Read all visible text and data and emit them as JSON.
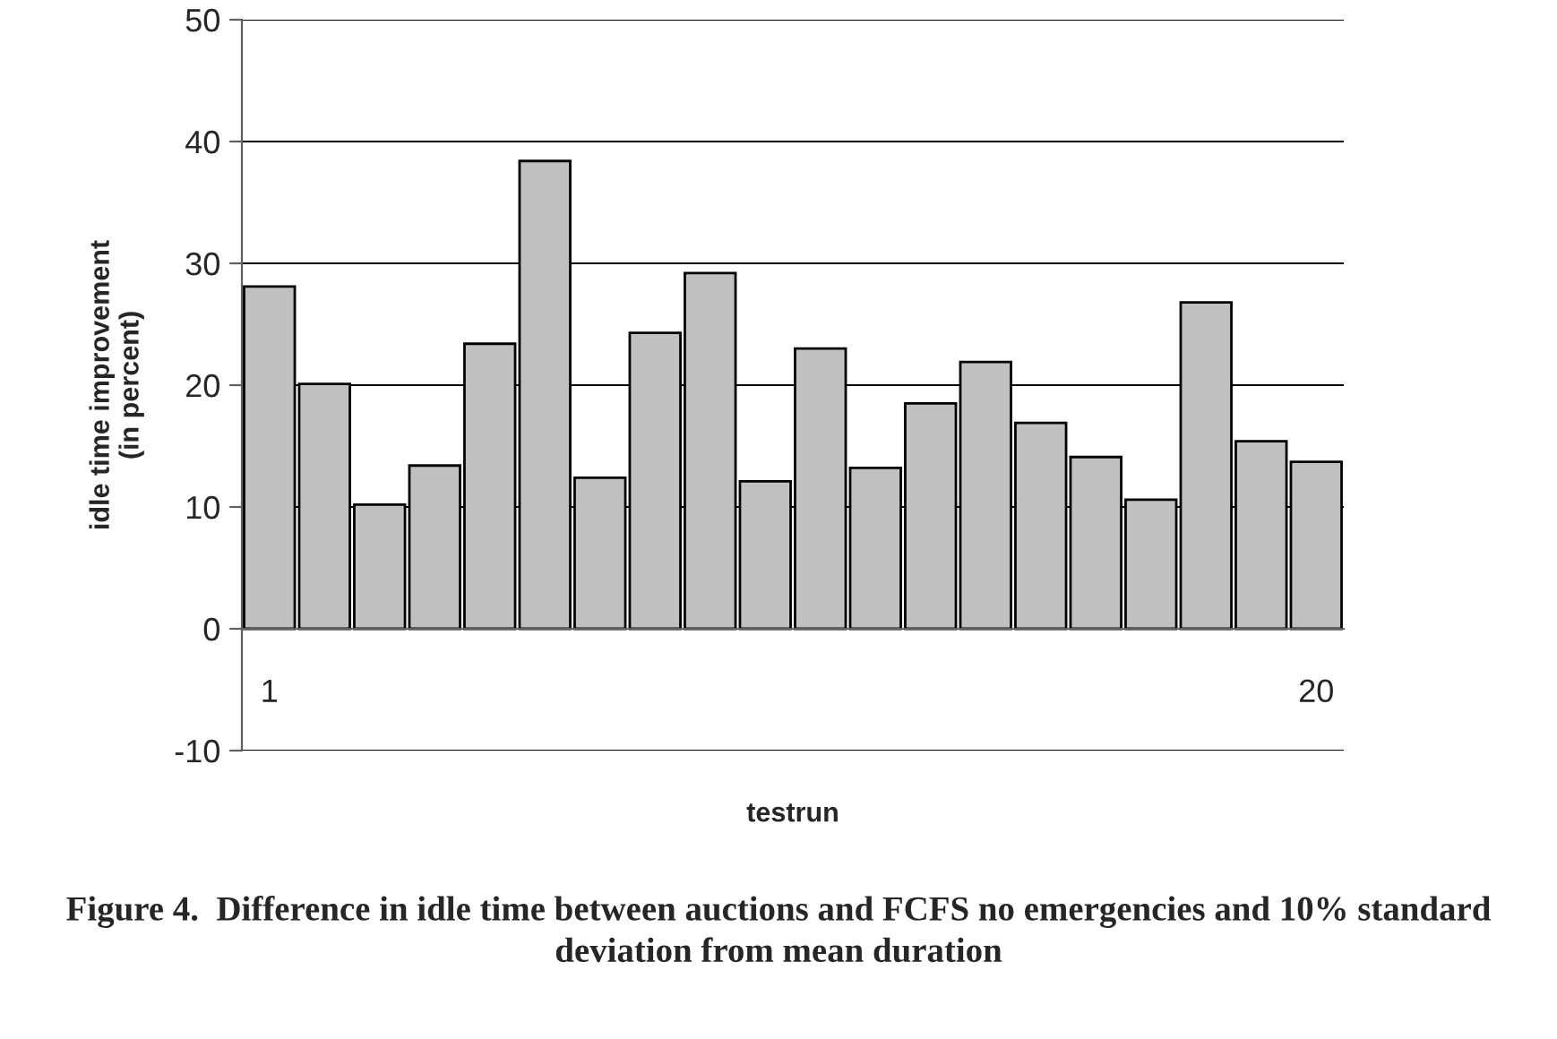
{
  "chart_data": {
    "type": "bar",
    "xlabel": "testrun",
    "ylabel": "idle time improvement\n(in percent)",
    "categories": [
      "1",
      null,
      null,
      null,
      null,
      null,
      null,
      null,
      null,
      null,
      null,
      null,
      null,
      null,
      null,
      null,
      null,
      null,
      null,
      "20"
    ],
    "values": [
      28.1,
      20.1,
      10.2,
      13.4,
      23.4,
      38.4,
      12.4,
      24.3,
      29.2,
      12.1,
      23.0,
      13.2,
      18.5,
      21.9,
      16.9,
      14.1,
      10.6,
      26.8,
      15.4,
      13.7
    ],
    "color": "#c0c0c0",
    "ylim": [
      -10,
      50
    ],
    "yticks": [
      -10,
      0,
      10,
      20,
      30,
      40,
      50
    ],
    "grid": "y",
    "legend": false,
    "annotations": [
      "Figure 4.  Difference in idle time between auctions and FCFS no emergencies and 10% standard deviation from mean duration"
    ]
  }
}
